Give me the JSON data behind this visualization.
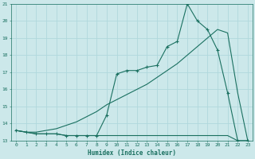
{
  "xlabel": "Humidex (Indice chaleur)",
  "bg_color": "#cce8ea",
  "grid_color": "#b0d8dc",
  "line_color": "#1a7060",
  "xlim": [
    -0.5,
    23.5
  ],
  "ylim": [
    13,
    21
  ],
  "xticks": [
    0,
    1,
    2,
    3,
    4,
    5,
    6,
    7,
    8,
    9,
    10,
    11,
    12,
    13,
    14,
    15,
    16,
    17,
    18,
    19,
    20,
    21,
    22,
    23
  ],
  "yticks": [
    13,
    14,
    15,
    16,
    17,
    18,
    19,
    20,
    21
  ],
  "line_flat_x": [
    0,
    1,
    2,
    3,
    4,
    5,
    6,
    7,
    8,
    9,
    10,
    11,
    12,
    13,
    14,
    15,
    16,
    17,
    18,
    19,
    20,
    21,
    22,
    23
  ],
  "line_flat_y": [
    13.6,
    13.5,
    13.4,
    13.4,
    13.4,
    13.3,
    13.3,
    13.3,
    13.3,
    13.3,
    13.3,
    13.3,
    13.3,
    13.3,
    13.3,
    13.3,
    13.3,
    13.3,
    13.3,
    13.3,
    13.3,
    13.3,
    13.0,
    13.0
  ],
  "line_diag_x": [
    0,
    1,
    2,
    3,
    4,
    5,
    6,
    7,
    8,
    9,
    10,
    11,
    12,
    13,
    14,
    15,
    16,
    17,
    18,
    19,
    20,
    21,
    22,
    23
  ],
  "line_diag_y": [
    13.6,
    13.5,
    13.5,
    13.6,
    13.7,
    13.9,
    14.1,
    14.4,
    14.7,
    15.1,
    15.4,
    15.7,
    16.0,
    16.3,
    16.7,
    17.1,
    17.5,
    18.0,
    18.5,
    19.0,
    19.5,
    19.3,
    15.8,
    13.0
  ],
  "line_peak_x": [
    0,
    1,
    2,
    3,
    4,
    5,
    6,
    7,
    8,
    9,
    10,
    11,
    12,
    13,
    14,
    15,
    16,
    17,
    18,
    19,
    20,
    21,
    22,
    23
  ],
  "line_peak_y": [
    13.6,
    13.5,
    13.4,
    13.4,
    13.4,
    13.3,
    13.3,
    13.3,
    13.3,
    14.5,
    16.9,
    17.1,
    17.1,
    17.3,
    17.4,
    18.5,
    18.8,
    21.0,
    20.0,
    19.5,
    18.3,
    15.8,
    13.0,
    13.0
  ]
}
